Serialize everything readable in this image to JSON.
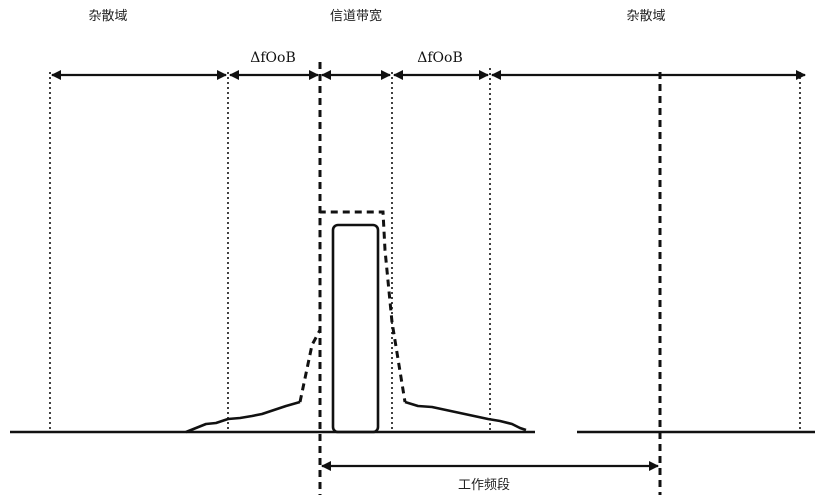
{
  "labels": {
    "spurious_left": "杂散域",
    "channel_bandwidth": "信道带宽",
    "spurious_right": "杂散域",
    "oob_left": "ΔfOoB",
    "oob_right": "ΔfOoB",
    "working_band": "工作频段"
  },
  "colors": {
    "line": "#111111",
    "background": "#ffffff"
  }
}
